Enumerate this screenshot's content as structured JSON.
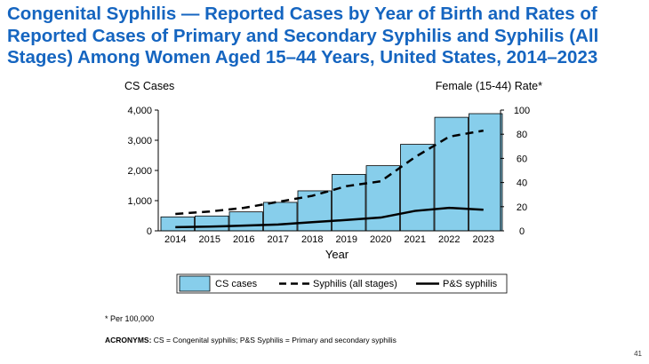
{
  "slide": {
    "title": "Congenital Syphilis — Reported Cases by Year of Birth and Rates of Reported Cases of Primary and Secondary Syphilis and Syphilis (All Stages) Among Women Aged 15–44 Years, United States, 2014–2023",
    "footnote_mark": "*",
    "footnote": "Per 100,000",
    "acronyms_label": "ACRONYMS:",
    "acronyms_text": "CS = Congenital syphilis; P&S Syphilis = Primary and secondary syphilis",
    "page_number": "41"
  },
  "chart_data": {
    "type": "bar",
    "xlabel": "Year",
    "ylabel": "CS Cases",
    "y2label": "Female (15-44) Rate*",
    "ylim": [
      0,
      4000
    ],
    "y2lim": [
      0,
      100
    ],
    "yticks": [
      "0",
      "1,000",
      "2,000",
      "3,000",
      "4,000"
    ],
    "y2ticks": [
      "0",
      "20",
      "40",
      "60",
      "80",
      "100"
    ],
    "categories": [
      "2014",
      "2015",
      "2016",
      "2017",
      "2018",
      "2019",
      "2020",
      "2021",
      "2022",
      "2023"
    ],
    "series": [
      {
        "name": "CS cases",
        "kind": "bar",
        "axis": "left",
        "color": "#87ceeb",
        "values": [
          462,
          492,
          628,
          943,
          1325,
          1870,
          2158,
          2865,
          3761,
          3882
        ]
      },
      {
        "name": "Syphilis (all stages)",
        "kind": "line",
        "style": "dashed",
        "axis": "right",
        "color": "#000000",
        "values": [
          14,
          16,
          19,
          24,
          29,
          37,
          41,
          61,
          78,
          83
        ]
      },
      {
        "name": "P&S syphilis",
        "kind": "line",
        "style": "solid",
        "axis": "right",
        "color": "#000000",
        "values": [
          3,
          3.5,
          4.3,
          5.2,
          7.2,
          9,
          11,
          16.5,
          19,
          17.5
        ]
      }
    ],
    "legend": "bottom",
    "grid": false
  }
}
